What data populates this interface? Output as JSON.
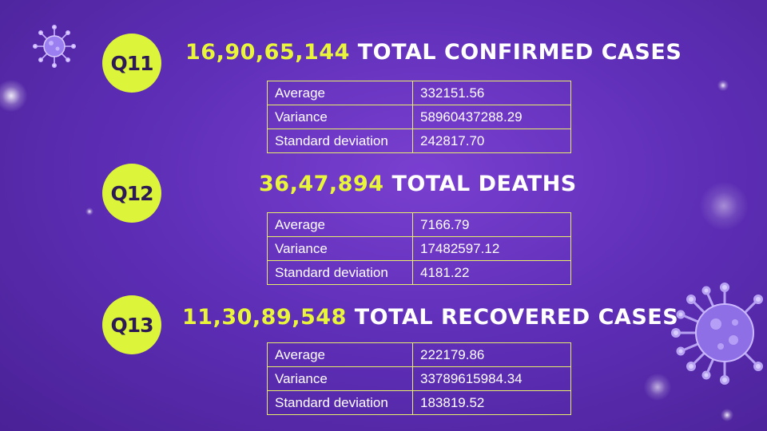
{
  "sections": [
    {
      "badge": "Q11",
      "number": "16,90,65,144",
      "caption": "TOTAL CONFIRMED CASES",
      "rows": [
        {
          "label": "Average",
          "value": "332151.56"
        },
        {
          "label": "Variance",
          "value": "58960437288.29"
        },
        {
          "label": "Standard deviation",
          "value": "242817.70"
        }
      ]
    },
    {
      "badge": "Q12",
      "number": "36,47,894",
      "caption": "TOTAL DEATHS",
      "rows": [
        {
          "label": "Average",
          "value": "7166.79"
        },
        {
          "label": "Variance",
          "value": "17482597.12"
        },
        {
          "label": "Standard deviation",
          "value": "4181.22"
        }
      ]
    },
    {
      "badge": "Q13",
      "number": "11,30,89,548",
      "caption": "TOTAL RECOVERED CASES",
      "rows": [
        {
          "label": "Average",
          "value": "222179.86"
        },
        {
          "label": "Variance",
          "value": "33789615984.34"
        },
        {
          "label": "Standard deviation",
          "value": "183819.52"
        }
      ]
    }
  ],
  "decor": {
    "virus_icon_small": "virus-icon",
    "virus_icon_large": "virus-icon",
    "badge_color": "#dcf53a",
    "number_color": "#e8f53a",
    "background_color": "#5f2fb8"
  }
}
